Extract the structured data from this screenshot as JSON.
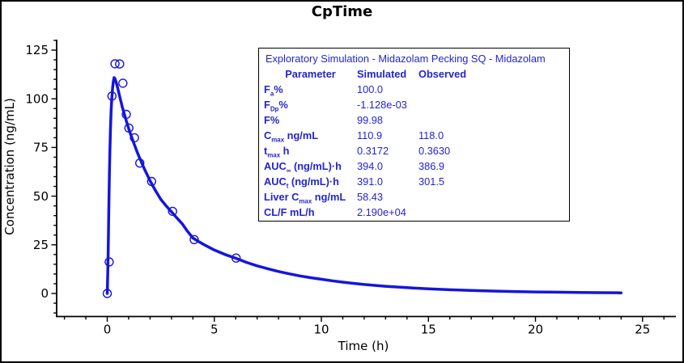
{
  "window": {
    "title": "CpTime"
  },
  "colors": {
    "curve_blue": "#1515DE",
    "table_text_blue": "#2424CE",
    "axis_black": "#000000",
    "background": "#FFFFFF"
  },
  "chart_data": {
    "type": "line",
    "title": "CpTime",
    "xlabel": "Time (h)",
    "ylabel": "Concentration (ng/mL)",
    "xlim": [
      -2.4,
      26.8
    ],
    "ylim": [
      -11,
      130.5
    ],
    "x_major_ticks": [
      0,
      5,
      10,
      15,
      20,
      25
    ],
    "y_major_ticks": [
      0,
      25,
      50,
      75,
      100,
      125
    ],
    "x_minor_step": 1,
    "y_minor_step": 5,
    "grid": false,
    "legend": "none",
    "series": [
      {
        "name": "Simulated",
        "style": "line",
        "color": "#1515DE",
        "points": [
          [
            0,
            0
          ],
          [
            0.02,
            8
          ],
          [
            0.04,
            20
          ],
          [
            0.06,
            34
          ],
          [
            0.08,
            48
          ],
          [
            0.1,
            60
          ],
          [
            0.12,
            72
          ],
          [
            0.15,
            85
          ],
          [
            0.18,
            94
          ],
          [
            0.21,
            100
          ],
          [
            0.25,
            105.5
          ],
          [
            0.28,
            108.5
          ],
          [
            0.317,
            110.9
          ],
          [
            0.36,
            110.4
          ],
          [
            0.4,
            109.0
          ],
          [
            0.45,
            107.2
          ],
          [
            0.5,
            105.0
          ],
          [
            0.6,
            100.3
          ],
          [
            0.7,
            95.9
          ],
          [
            0.8,
            92.0
          ],
          [
            0.9,
            88.3
          ],
          [
            1.0,
            84.8
          ],
          [
            1.1,
            81.5
          ],
          [
            1.25,
            76.9
          ],
          [
            1.4,
            72.6
          ],
          [
            1.5,
            69.9
          ],
          [
            1.75,
            63.6
          ],
          [
            2.0,
            57.9
          ],
          [
            2.25,
            52.9
          ],
          [
            2.5,
            48.4
          ],
          [
            2.75,
            45.0
          ],
          [
            3.0,
            42.0
          ],
          [
            3.25,
            38.8
          ],
          [
            3.5,
            35.8
          ],
          [
            3.75,
            31.9
          ],
          [
            4.0,
            28.5
          ],
          [
            4.25,
            26.8
          ],
          [
            4.5,
            25.2
          ],
          [
            5.0,
            22.3
          ],
          [
            5.5,
            20.0
          ],
          [
            6.0,
            18.1
          ],
          [
            6.5,
            16.0
          ],
          [
            7.0,
            14.2
          ],
          [
            7.5,
            12.7
          ],
          [
            8.0,
            11.3
          ],
          [
            8.5,
            10.1
          ],
          [
            9.0,
            9.0
          ],
          [
            9.5,
            8.1
          ],
          [
            10,
            7.3
          ],
          [
            10.5,
            6.5
          ],
          [
            11,
            5.8
          ],
          [
            11.5,
            5.2
          ],
          [
            12,
            4.6
          ],
          [
            13,
            3.7
          ],
          [
            14,
            3.0
          ],
          [
            15,
            2.4
          ],
          [
            16,
            1.9
          ],
          [
            17,
            1.55
          ],
          [
            18,
            1.25
          ],
          [
            19,
            1.0
          ],
          [
            20,
            0.8
          ],
          [
            21,
            0.65
          ],
          [
            22,
            0.52
          ],
          [
            23,
            0.42
          ],
          [
            24,
            0.35
          ]
        ]
      },
      {
        "name": "Observed",
        "style": "scatter-open-circle",
        "color": "#1515DE",
        "points": [
          [
            0,
            0
          ],
          [
            0.09,
            16.2
          ],
          [
            0.22,
            101.4
          ],
          [
            0.363,
            118.0
          ],
          [
            0.58,
            117.9
          ],
          [
            0.73,
            108.0
          ],
          [
            0.89,
            92.0
          ],
          [
            1.01,
            85.0
          ],
          [
            1.27,
            80.0
          ],
          [
            1.52,
            67.0
          ],
          [
            2.07,
            57.5
          ],
          [
            3.05,
            42.2
          ],
          [
            4.06,
            27.7
          ],
          [
            6.02,
            18.2
          ]
        ]
      }
    ]
  },
  "table": {
    "title": "Exploratory Simulation - Midazolam Pecking SQ - Midazolam",
    "headers": [
      "Parameter",
      "Simulated",
      "Observed"
    ],
    "rows": [
      {
        "param": "F_{a}%",
        "simulated": "100.0",
        "observed": ""
      },
      {
        "param": "F_{Dp}%",
        "simulated": "-1.128e-03",
        "observed": ""
      },
      {
        "param": "F%",
        "simulated": "99.98",
        "observed": ""
      },
      {
        "param": "C_{max} ng/mL",
        "simulated": "110.9",
        "observed": "118.0"
      },
      {
        "param": "t_{max} h",
        "simulated": "0.3172",
        "observed": "0.3630"
      },
      {
        "param": "AUC_{∞} (ng/mL)·h",
        "simulated": "394.0",
        "observed": "386.9"
      },
      {
        "param": "AUC_{t} (ng/mL)·h",
        "simulated": "391.0",
        "observed": "301.5"
      },
      {
        "param": "Liver C_{max} ng/mL",
        "simulated": "58.43",
        "observed": ""
      },
      {
        "param": "CL/F mL/h",
        "simulated": "2.190e+04",
        "observed": ""
      }
    ]
  }
}
